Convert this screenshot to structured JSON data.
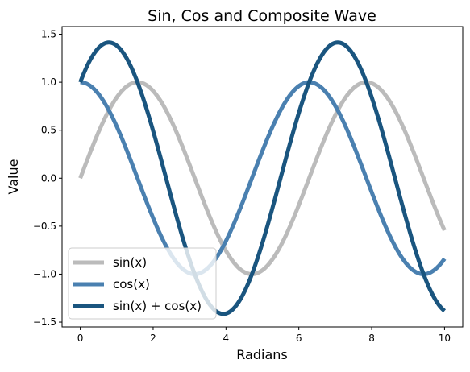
{
  "chart_data": {
    "type": "line",
    "title": "Sin, Cos and Composite Wave",
    "xlabel": "Radians",
    "ylabel": "Value",
    "xlim": [
      -0.5,
      10.5
    ],
    "ylim": [
      -1.55,
      1.58
    ],
    "xticks": [
      0,
      2,
      4,
      6,
      8,
      10
    ],
    "xtick_labels": [
      "0",
      "2",
      "4",
      "6",
      "8",
      "10"
    ],
    "yticks": [
      -1.5,
      -1.0,
      -0.5,
      0.0,
      0.5,
      1.0,
      1.5
    ],
    "ytick_labels": [
      "−1.5",
      "−1.0",
      "−0.5",
      "0.0",
      "0.5",
      "1.0",
      "1.5"
    ],
    "grid": false,
    "legend_position": "lower-left",
    "x_domain": [
      0,
      10
    ],
    "series": [
      {
        "name": "sin(x)",
        "function": "sin",
        "color": "#bbbbbb"
      },
      {
        "name": "cos(x)",
        "function": "cos",
        "color": "#4a80b0"
      },
      {
        "name": "sin(x) + cos(x)",
        "function": "sin+cos",
        "color": "#1a557f"
      }
    ]
  }
}
